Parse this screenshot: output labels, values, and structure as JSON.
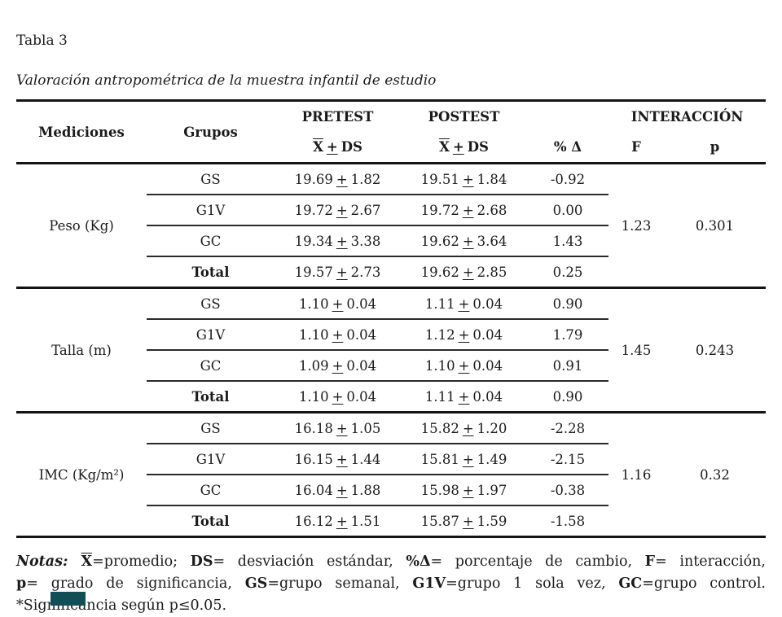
{
  "page": {
    "label": "Tabla 3",
    "title": "Valoración antropométrica de la muestra infantil de estudio"
  },
  "table": {
    "headers": {
      "mediciones": "Mediciones",
      "grupos": "Grupos",
      "pretest": "PRETEST",
      "postest": "POSTEST",
      "xbar": "X",
      "pm": "+",
      "ds": "DS",
      "delta": "% Δ",
      "interaccion": "INTERACCIÓN",
      "f": "F",
      "p": "p"
    },
    "blocks": [
      {
        "medicion": "Peso (Kg)",
        "f": "1.23",
        "p": "0.301",
        "rows": [
          {
            "grupo": "GS",
            "pre_m": "19.69",
            "pre_s": "1.82",
            "post_m": "19.51",
            "post_s": "1.84",
            "delta": "-0.92"
          },
          {
            "grupo": "G1V",
            "pre_m": "19.72",
            "pre_s": "2.67",
            "post_m": "19.72",
            "post_s": "2.68",
            "delta": "0.00"
          },
          {
            "grupo": "GC",
            "pre_m": "19.34",
            "pre_s": "3.38",
            "post_m": "19.62",
            "post_s": "3.64",
            "delta": "1.43"
          },
          {
            "grupo": "Total",
            "pre_m": "19.57",
            "pre_s": "2.73",
            "post_m": "19.62",
            "post_s": "2.85",
            "delta": "0.25"
          }
        ]
      },
      {
        "medicion": "Talla (m)",
        "f": "1.45",
        "p": "0.243",
        "rows": [
          {
            "grupo": "GS",
            "pre_m": "1.10",
            "pre_s": "0.04",
            "post_m": "1.11",
            "post_s": "0.04",
            "delta": "0.90"
          },
          {
            "grupo": "G1V",
            "pre_m": "1.10",
            "pre_s": "0.04",
            "post_m": "1.12",
            "post_s": "0.04",
            "delta": "1.79"
          },
          {
            "grupo": "GC",
            "pre_m": "1.09",
            "pre_s": "0.04",
            "post_m": "1.10",
            "post_s": "0.04",
            "delta": "0.91"
          },
          {
            "grupo": "Total",
            "pre_m": "1.10",
            "pre_s": "0.04",
            "post_m": "1.11",
            "post_s": "0.04",
            "delta": "0.90"
          }
        ]
      },
      {
        "medicion": "IMC (Kg/m²)",
        "f": "1.16",
        "p": "0.32",
        "rows": [
          {
            "grupo": "GS",
            "pre_m": "16.18",
            "pre_s": "1.05",
            "post_m": "15.82",
            "post_s": "1.20",
            "delta": "-2.28"
          },
          {
            "grupo": "G1V",
            "pre_m": "16.15",
            "pre_s": "1.44",
            "post_m": "15.81",
            "post_s": "1.49",
            "delta": "-2.15"
          },
          {
            "grupo": "GC",
            "pre_m": "16.04",
            "pre_s": "1.88",
            "post_m": "15.98",
            "post_s": "1.97",
            "delta": "-0.38"
          },
          {
            "grupo": "Total",
            "pre_m": "16.12",
            "pre_s": "1.51",
            "post_m": "15.87",
            "post_s": "1.59",
            "delta": "-1.58"
          }
        ]
      }
    ]
  },
  "notes": {
    "lines": [
      [
        {
          "s": "bi",
          "t": "Notas: "
        },
        {
          "s": "bx",
          "t": "X"
        },
        {
          "s": "",
          "t": "=promedio; "
        },
        {
          "s": "b",
          "t": "DS"
        },
        {
          "s": "",
          "t": "= desviación estándar, "
        },
        {
          "s": "b",
          "t": "%Δ"
        },
        {
          "s": "",
          "t": "= porcentaje de cambio, "
        },
        {
          "s": "b",
          "t": "F"
        },
        {
          "s": "",
          "t": "= interacción,"
        }
      ],
      [
        {
          "s": "b",
          "t": "p"
        },
        {
          "s": "",
          "t": "= grado de significancia, "
        },
        {
          "s": "b",
          "t": "GS"
        },
        {
          "s": "",
          "t": "=grupo semanal, "
        },
        {
          "s": "b",
          "t": "G1V"
        },
        {
          "s": "",
          "t": "=grupo 1 sola vez, "
        },
        {
          "s": "b",
          "t": "GC"
        },
        {
          "s": "",
          "t": "=grupo control."
        }
      ],
      [
        {
          "s": "",
          "t": "*Significancia según p≤0.05."
        }
      ]
    ]
  },
  "decoration": {
    "corner_marker_color": "#124e56"
  }
}
